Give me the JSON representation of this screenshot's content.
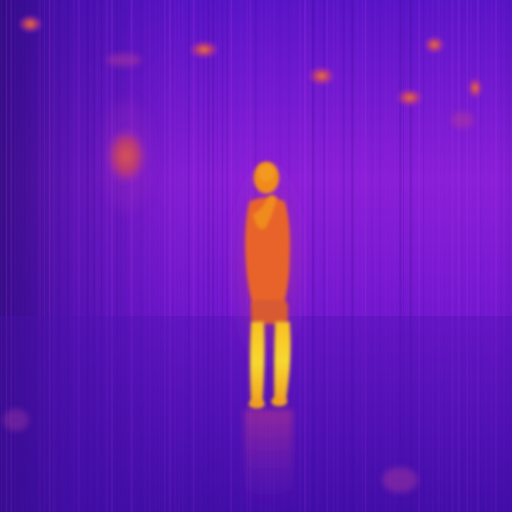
{
  "image": {
    "palette": {
      "cold": "#2a0a7a",
      "cool": "#5a14c8",
      "mid": "#9a2ad8",
      "warm": "#e0502a",
      "hot": "#f08a1a",
      "hottest": "#f8d020"
    },
    "scene_elements": [
      "thermal-background",
      "ceiling-lights",
      "wall-lamp",
      "person-silhouette",
      "floor-reflection"
    ]
  }
}
